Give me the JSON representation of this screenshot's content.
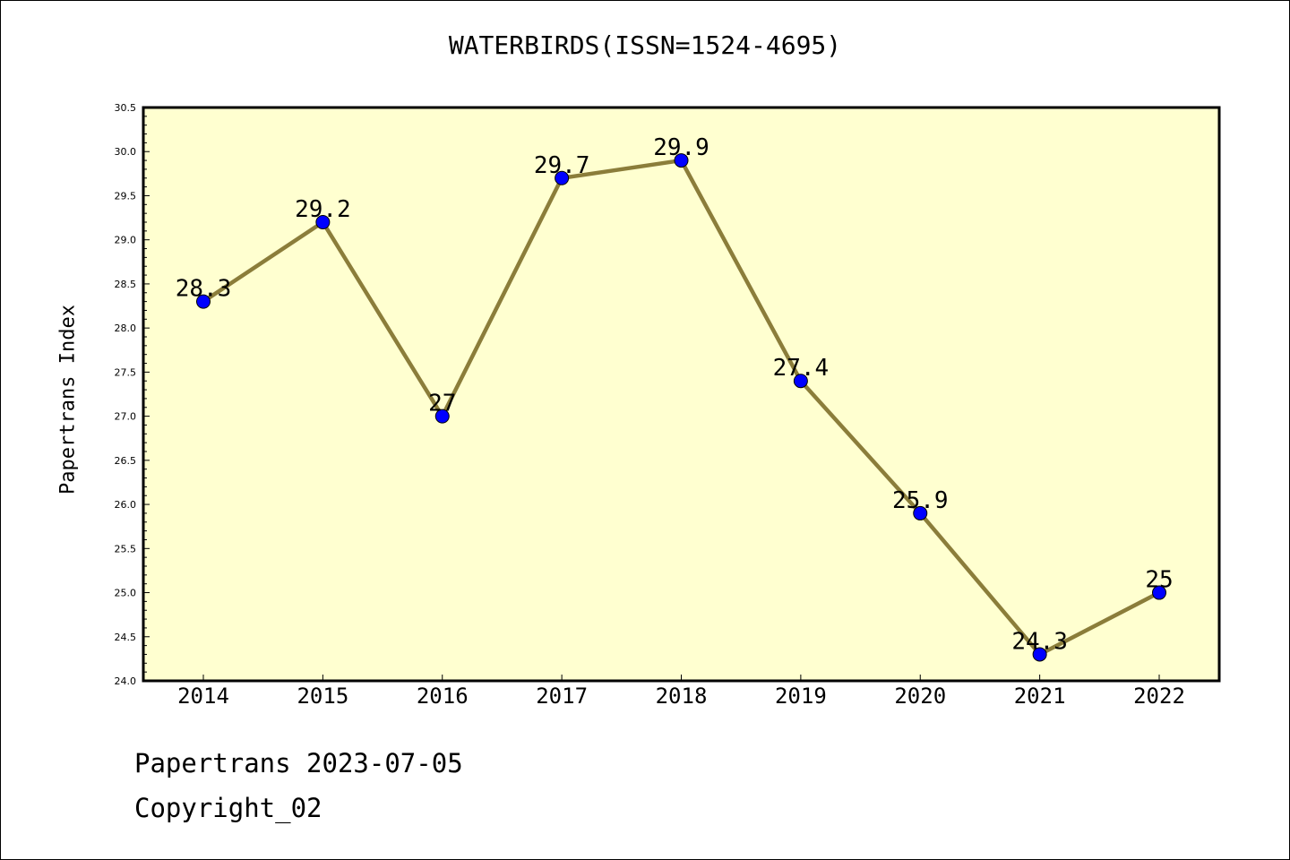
{
  "chart_data": {
    "type": "line",
    "title": "WATERBIRDS(ISSN=1524-4695)",
    "xlabel": "",
    "ylabel": "Papertrans Index",
    "categories": [
      "2014",
      "2015",
      "2016",
      "2017",
      "2018",
      "2019",
      "2020",
      "2021",
      "2022"
    ],
    "values": [
      28.3,
      29.2,
      27,
      29.7,
      29.9,
      27.4,
      25.9,
      24.3,
      25
    ],
    "data_labels": [
      "28.3",
      "29.2",
      "27",
      "29.7",
      "29.9",
      "27.4",
      "25.9",
      "24.3",
      "25"
    ],
    "ylim": [
      24.0,
      30.5
    ],
    "y_ticks": [
      "24.0",
      "24.5",
      "25.0",
      "25.5",
      "26.0",
      "26.5",
      "27.0",
      "27.5",
      "28.0",
      "28.5",
      "29.0",
      "29.5",
      "30.0",
      "30.5"
    ],
    "grid": false,
    "colors": {
      "plot_background": "#ffffd0",
      "line": "#8b7d3a",
      "marker": "#0000ff"
    }
  },
  "footer": {
    "line1": "Papertrans 2023-07-05",
    "line2": "Copyright_02"
  }
}
